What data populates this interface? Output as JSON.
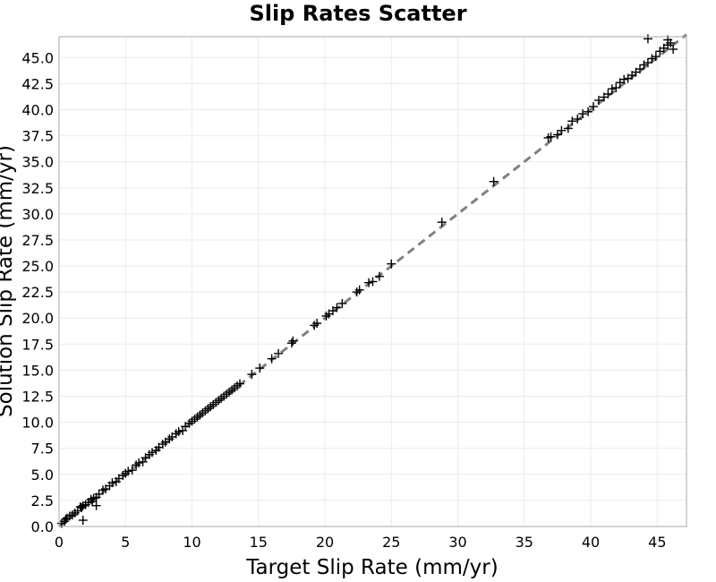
{
  "chart_data": {
    "type": "scatter",
    "title": "Slip Rates Scatter",
    "xlabel": "Target Slip Rate (mm/yr)",
    "ylabel": "Solution Slip Rate (mm/yr)",
    "xlim": [
      0,
      47.2
    ],
    "ylim": [
      0,
      47
    ],
    "x_ticks": [
      "0",
      "5",
      "10",
      "15",
      "20",
      "25",
      "30",
      "35",
      "40",
      "45"
    ],
    "y_ticks": [
      "0.0",
      "2.5",
      "5.0",
      "7.5",
      "10.0",
      "12.5",
      "15.0",
      "17.5",
      "20.0",
      "22.5",
      "25.0",
      "27.5",
      "30.0",
      "32.5",
      "35.0",
      "37.5",
      "40.0",
      "42.5",
      "45.0"
    ],
    "grid": true,
    "marker": "plus",
    "marker_color": "#000000",
    "reference_line": {
      "from": [
        0,
        0
      ],
      "to": [
        47.2,
        47.2
      ],
      "style": "dashed",
      "color": "#808080"
    },
    "series": [
      {
        "x": [
          0.2,
          0.4,
          0.5,
          0.6,
          0.8,
          1.0,
          1.2,
          1.4,
          1.6,
          1.7,
          1.8,
          2.0,
          2.2,
          2.4,
          2.5,
          2.6,
          2.8,
          3.0,
          3.3,
          3.5,
          3.8,
          4.0,
          4.3,
          4.5,
          4.8,
          5.0,
          5.2,
          5.5,
          5.8,
          6.0,
          6.3,
          6.5,
          6.8,
          7.0,
          7.3,
          7.5,
          7.8,
          8.0,
          8.3,
          8.5,
          8.8,
          9.0,
          9.3,
          9.5,
          9.8,
          10.0,
          10.2,
          10.4,
          10.6,
          10.8,
          11.0,
          11.2,
          11.4,
          11.6,
          11.8,
          12.0,
          12.2,
          12.4,
          12.6,
          12.8,
          13.0,
          13.2,
          13.4,
          13.6,
          14.5,
          15.1,
          16.0,
          16.5,
          17.5,
          17.6,
          19.2,
          19.4,
          20.1,
          20.3,
          20.6,
          20.9,
          21.3,
          22.4,
          22.6,
          23.3,
          23.6,
          24.1,
          25.0,
          28.8,
          32.7,
          36.8,
          37.0,
          37.5,
          37.8,
          38.3,
          38.6,
          39.0,
          39.4,
          39.8,
          40.2,
          40.6,
          41.0,
          41.3,
          41.6,
          41.9,
          42.2,
          42.5,
          42.8,
          43.1,
          43.4,
          43.7,
          44.0,
          44.3,
          44.6,
          44.9,
          45.2,
          45.5,
          45.8,
          46.0,
          46.2,
          1.8,
          2.8,
          44.3,
          45.8
        ],
        "y": [
          0.3,
          0.5,
          0.7,
          0.8,
          1.0,
          1.1,
          1.3,
          1.5,
          1.9,
          1.8,
          2.0,
          2.1,
          2.3,
          2.6,
          2.4,
          2.7,
          2.8,
          3.1,
          3.5,
          3.6,
          3.9,
          4.2,
          4.3,
          4.6,
          4.9,
          5.1,
          5.3,
          5.4,
          5.9,
          6.1,
          6.2,
          6.6,
          6.9,
          7.1,
          7.3,
          7.6,
          7.9,
          8.1,
          8.4,
          8.6,
          8.9,
          9.1,
          9.2,
          9.6,
          9.9,
          10.1,
          10.3,
          10.5,
          10.7,
          10.9,
          11.1,
          11.3,
          11.5,
          11.7,
          11.9,
          12.1,
          12.3,
          12.5,
          12.7,
          12.9,
          13.1,
          13.3,
          13.5,
          13.7,
          14.6,
          15.2,
          16.1,
          16.6,
          17.6,
          17.8,
          19.3,
          19.5,
          20.2,
          20.4,
          20.7,
          21.0,
          21.4,
          22.5,
          22.7,
          23.4,
          23.5,
          24.0,
          25.2,
          29.2,
          33.1,
          37.3,
          37.4,
          37.6,
          38.0,
          38.2,
          38.9,
          39.1,
          39.6,
          39.8,
          40.3,
          40.9,
          41.2,
          41.5,
          42.0,
          42.1,
          42.6,
          42.9,
          43.0,
          43.3,
          43.6,
          43.9,
          44.3,
          44.5,
          44.9,
          45.1,
          45.6,
          45.9,
          46.2,
          46.4,
          45.8,
          0.6,
          2.0,
          46.8,
          46.7
        ]
      }
    ]
  }
}
